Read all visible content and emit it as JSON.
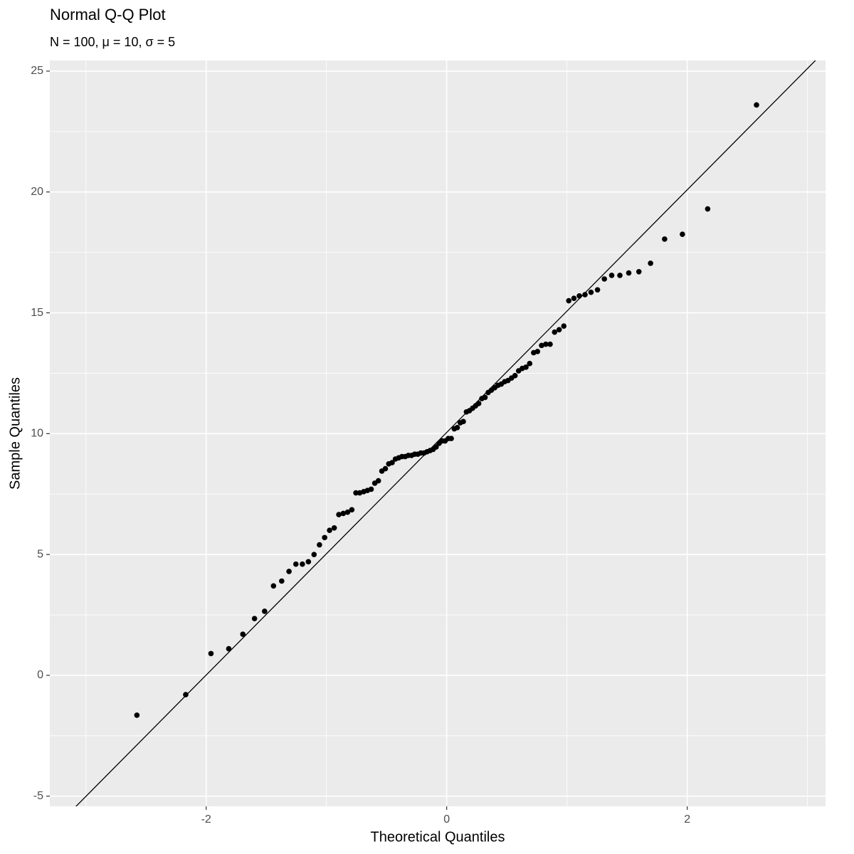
{
  "chart_data": {
    "type": "scatter",
    "title": "Normal Q-Q Plot",
    "subtitle": "N = 100, μ = 10, σ = 5",
    "x_label": "Theoretical Quantiles",
    "y_label": "Sample Quantiles",
    "color": "#000000",
    "grid": true,
    "xlim": [
      -3.3,
      3.15
    ],
    "ylim": [
      -5.42,
      25.44
    ],
    "xticks": [
      -2,
      0,
      2
    ],
    "yticks": [
      -5,
      0,
      5,
      10,
      15,
      20,
      25
    ],
    "xminor": [
      -3,
      -1,
      1,
      3
    ],
    "yminor": [
      -2.5,
      2.5,
      7.5,
      12.5,
      17.5,
      22.5
    ],
    "line": {
      "intercept": 10.05,
      "slope": 5.02
    },
    "x": [
      -2.576,
      -2.17,
      -1.96,
      -1.812,
      -1.695,
      -1.598,
      -1.514,
      -1.44,
      -1.372,
      -1.311,
      -1.254,
      -1.2,
      -1.15,
      -1.103,
      -1.058,
      -1.015,
      -0.974,
      -0.935,
      -0.897,
      -0.86,
      -0.824,
      -0.789,
      -0.755,
      -0.723,
      -0.69,
      -0.659,
      -0.628,
      -0.598,
      -0.568,
      -0.539,
      -0.51,
      -0.482,
      -0.454,
      -0.426,
      -0.399,
      -0.372,
      -0.345,
      -0.319,
      -0.292,
      -0.266,
      -0.24,
      -0.215,
      -0.189,
      -0.164,
      -0.138,
      -0.113,
      -0.088,
      -0.063,
      -0.038,
      -0.013,
      0.013,
      0.038,
      0.063,
      0.088,
      0.113,
      0.138,
      0.164,
      0.189,
      0.215,
      0.24,
      0.266,
      0.292,
      0.319,
      0.345,
      0.372,
      0.399,
      0.426,
      0.454,
      0.482,
      0.51,
      0.539,
      0.568,
      0.598,
      0.628,
      0.659,
      0.69,
      0.723,
      0.755,
      0.789,
      0.824,
      0.86,
      0.897,
      0.935,
      0.974,
      1.015,
      1.058,
      1.103,
      1.15,
      1.2,
      1.254,
      1.311,
      1.372,
      1.44,
      1.514,
      1.598,
      1.695,
      1.812,
      1.96,
      2.17,
      2.576
    ],
    "values": [
      -1.65,
      -0.8,
      0.9,
      1.1,
      1.7,
      2.35,
      2.65,
      3.7,
      3.9,
      4.3,
      4.6,
      4.6,
      4.7,
      5.0,
      5.4,
      5.7,
      6.0,
      6.1,
      6.65,
      6.7,
      6.75,
      6.85,
      7.55,
      7.55,
      7.6,
      7.65,
      7.7,
      7.95,
      8.05,
      8.45,
      8.55,
      8.75,
      8.8,
      8.95,
      9.0,
      9.05,
      9.05,
      9.1,
      9.1,
      9.15,
      9.15,
      9.2,
      9.2,
      9.25,
      9.3,
      9.35,
      9.45,
      9.6,
      9.7,
      9.7,
      9.8,
      9.8,
      10.2,
      10.25,
      10.45,
      10.5,
      10.9,
      10.95,
      11.05,
      11.15,
      11.25,
      11.45,
      11.5,
      11.7,
      11.8,
      11.9,
      12.0,
      12.05,
      12.15,
      12.2,
      12.3,
      12.4,
      12.6,
      12.7,
      12.75,
      12.9,
      13.35,
      13.4,
      13.65,
      13.7,
      13.7,
      14.2,
      14.3,
      14.45,
      15.5,
      15.6,
      15.7,
      15.75,
      15.85,
      15.95,
      16.4,
      16.55,
      16.55,
      16.65,
      16.7,
      17.05,
      18.05,
      18.25,
      19.3,
      23.6
    ]
  }
}
